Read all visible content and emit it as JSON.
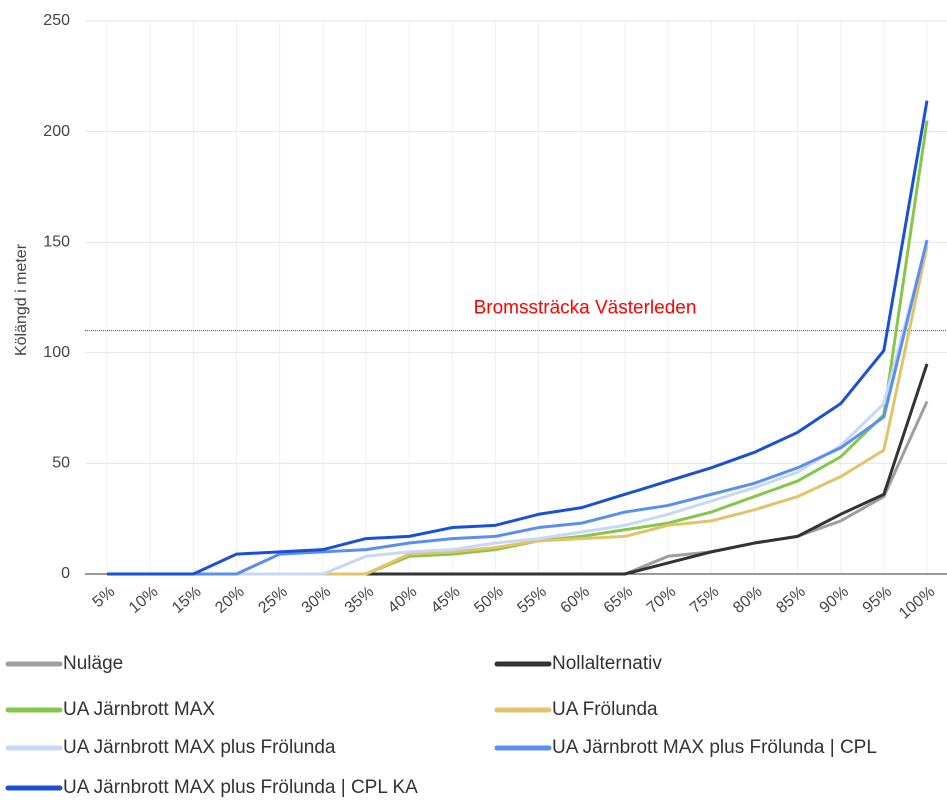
{
  "chart_data": {
    "type": "line",
    "y_label": "Kölängd i meter",
    "categories": [
      "5%",
      "10%",
      "15%",
      "20%",
      "25%",
      "30%",
      "35%",
      "40%",
      "45%",
      "50%",
      "55%",
      "60%",
      "65%",
      "70%",
      "75%",
      "80%",
      "85%",
      "90%",
      "95%",
      "100%"
    ],
    "ylim": [
      0,
      250
    ],
    "yticks": [
      0,
      50,
      100,
      150,
      200,
      250
    ],
    "grid": true,
    "legend": "bottom",
    "reference_line": {
      "value": 110,
      "label": "Bromssträcka Västerleden",
      "color": "#ff0000"
    },
    "series": [
      {
        "name": "Nuläge",
        "color": "#9e9e9e",
        "values": [
          0,
          0,
          0,
          0,
          0,
          0,
          0,
          0,
          0,
          0,
          0,
          0,
          0,
          8,
          10,
          14,
          17,
          24,
          35,
          78
        ]
      },
      {
        "name": "Nollalternativ",
        "color": "#333333",
        "values": [
          0,
          0,
          0,
          0,
          0,
          0,
          0,
          0,
          0,
          0,
          0,
          0,
          0,
          5,
          10,
          14,
          17,
          27,
          36,
          95
        ]
      },
      {
        "name": "UA Järnbrott MAX",
        "color": "#86c64a",
        "values": [
          0,
          0,
          0,
          0,
          0,
          0,
          0,
          8,
          9,
          11,
          15,
          17,
          20,
          23,
          28,
          35,
          42,
          53,
          72,
          205
        ]
      },
      {
        "name": "UA Frölunda",
        "color": "#e2c36b",
        "values": [
          0,
          0,
          0,
          0,
          0,
          0,
          0,
          9,
          10,
          12,
          15,
          16,
          17,
          22,
          24,
          29,
          35,
          44,
          56,
          148
        ]
      },
      {
        "name": "UA Järnbrott MAX plus Frölunda",
        "color": "#c6d8f6",
        "values": [
          0,
          0,
          0,
          0,
          0,
          0,
          8,
          10,
          11,
          14,
          16,
          19,
          22,
          27,
          33,
          39,
          46,
          58,
          77,
          150
        ]
      },
      {
        "name": "UA Järnbrott MAX plus Frölunda | CPL",
        "color": "#5a8ff0",
        "values": [
          0,
          0,
          0,
          0,
          9,
          10,
          11,
          14,
          16,
          17,
          21,
          23,
          28,
          31,
          36,
          41,
          48,
          57,
          71,
          151
        ]
      },
      {
        "name": "UA Järnbrott MAX plus Frölunda | CPL KA",
        "color": "#1a50d8",
        "values": [
          0,
          0,
          0,
          9,
          10,
          11,
          16,
          17,
          21,
          22,
          27,
          30,
          36,
          42,
          48,
          55,
          64,
          77,
          101,
          214
        ]
      }
    ]
  }
}
